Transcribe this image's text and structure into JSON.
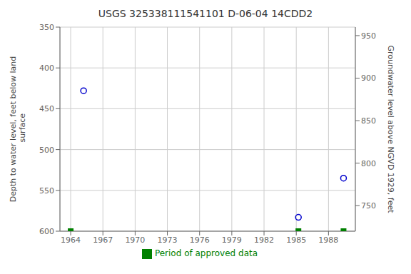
{
  "chart_data": {
    "type": "scatter",
    "title": "USGS 325338111541101 D-06-04 14CDD2",
    "y_label": "Depth to water level, feet below land\n surface",
    "y2_label": "Groundwater level above NGVD 1929, feet",
    "xlim": [
      1963.0,
      1990.5
    ],
    "xticks": [
      1964,
      1967,
      1970,
      1973,
      1976,
      1979,
      1982,
      1985,
      1988
    ],
    "ylim": [
      600,
      350
    ],
    "yticks": [
      350,
      400,
      450,
      500,
      550,
      600
    ],
    "y2lim": [
      720,
      960
    ],
    "y2ticks": [
      750,
      800,
      850,
      900,
      950
    ],
    "grid": true,
    "series": [
      {
        "x": [
          1965.2,
          1985.2,
          1989.4
        ],
        "values": [
          428,
          583,
          535
        ],
        "color": "#0000CC",
        "marker": "circle"
      },
      {
        "name": "Period of approved data",
        "x": [
          1964.0,
          1985.2,
          1989.4
        ],
        "values": [
          600,
          600,
          600
        ],
        "color": "#008000",
        "marker": "square"
      }
    ]
  }
}
